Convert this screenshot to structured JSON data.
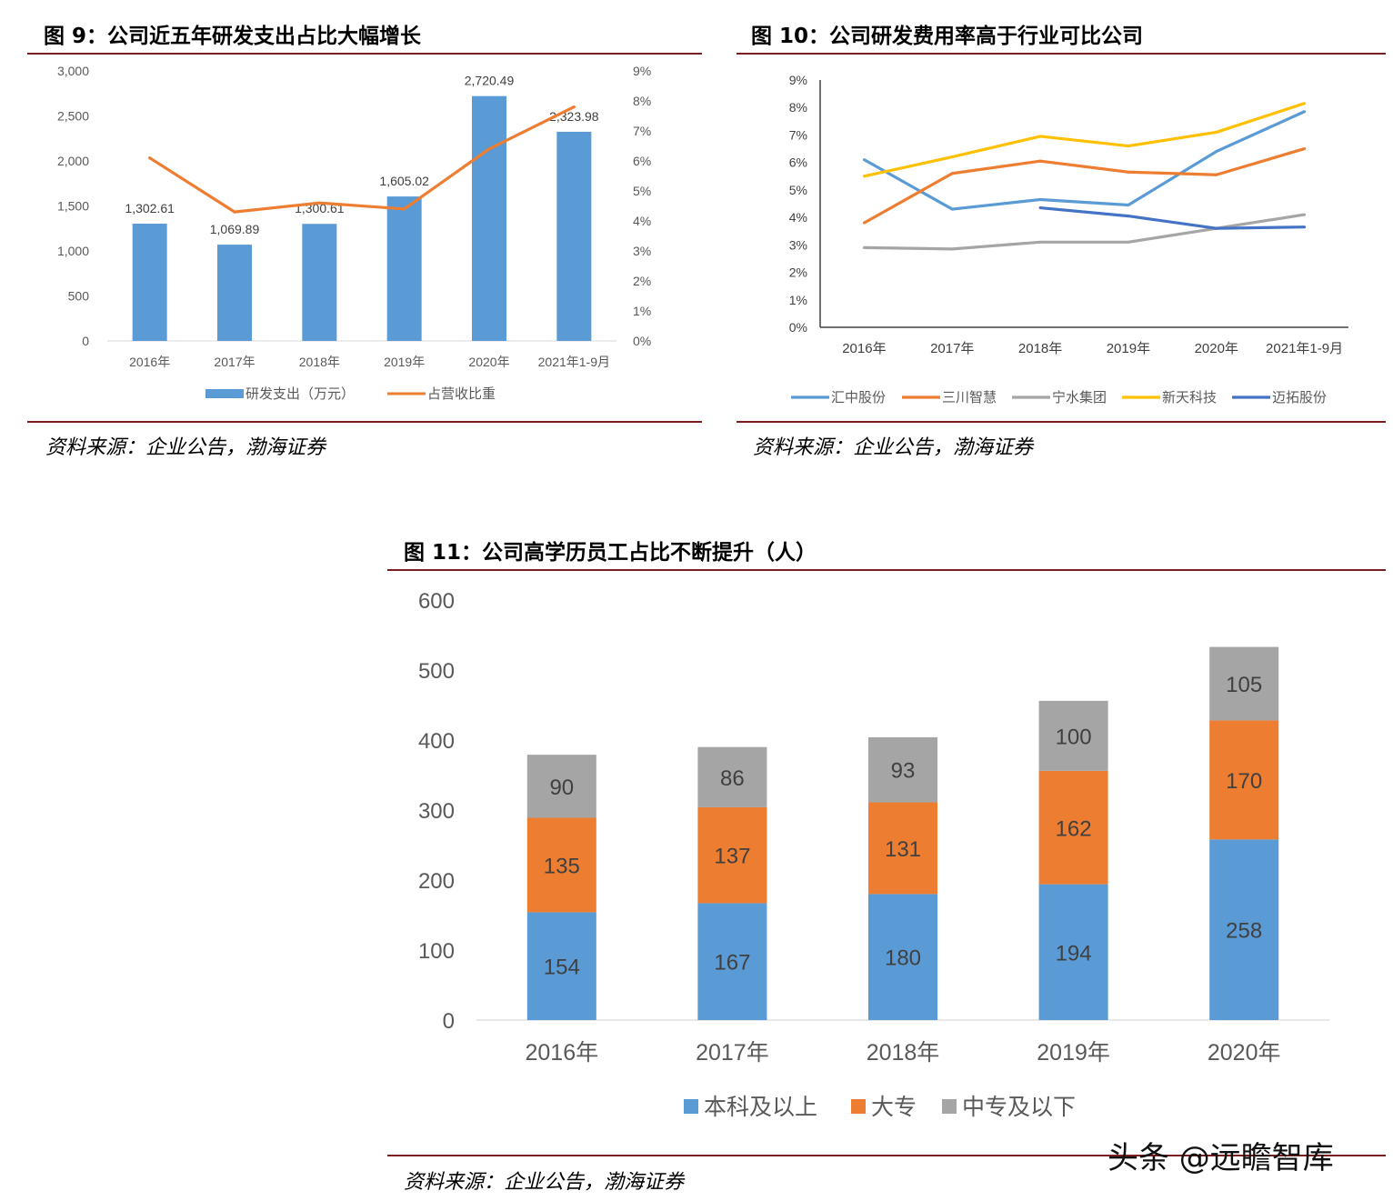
{
  "fig9": {
    "title": "图 9：公司近五年研发支出占比大幅增长",
    "source": "资料来源：企业公告，渤海证券"
  },
  "fig10": {
    "title": "图 10：公司研发费用率高于行业可比公司",
    "source": "资料来源：企业公告，渤海证券"
  },
  "fig11": {
    "title": "图 11：公司高学历员工占比不断提升（人）",
    "source": "资料来源：企业公告，渤海证券"
  },
  "watermark": "头条 @远瞻智库",
  "chart_data": [
    {
      "type": "bar",
      "categories": [
        "2016年",
        "2017年",
        "2018年",
        "2019年",
        "2020年",
        "2021年1-9月"
      ],
      "series": [
        {
          "name": "研发支出（万元）",
          "type": "bar",
          "axis": "left",
          "color": "#5b9bd5",
          "values": [
            1302.61,
            1069.89,
            1300.61,
            1605.02,
            2720.49,
            2323.98
          ],
          "labels": [
            "1,302.61",
            "1,069.89",
            "1,300.61",
            "1,605.02",
            "2,720.49",
            "2,323.98"
          ]
        },
        {
          "name": "占营收比重",
          "type": "line",
          "axis": "right",
          "color": "#ed7d31",
          "values": [
            6.1,
            4.3,
            4.6,
            4.4,
            6.4,
            7.8
          ]
        }
      ],
      "yticks_left": [
        "0",
        "500",
        "1,000",
        "1,500",
        "2,000",
        "2,500",
        "3,000"
      ],
      "yticks_right": [
        "0%",
        "1%",
        "2%",
        "3%",
        "4%",
        "5%",
        "6%",
        "7%",
        "8%",
        "9%"
      ],
      "ylim_left": [
        0,
        3000
      ],
      "ylim_right": [
        0,
        9
      ],
      "legend": "bottom"
    },
    {
      "type": "line",
      "categories": [
        "2016年",
        "2017年",
        "2018年",
        "2019年",
        "2020年",
        "2021年1-9月"
      ],
      "series": [
        {
          "name": "汇中股份",
          "color": "#5b9bd5",
          "values": [
            6.1,
            4.3,
            4.65,
            4.45,
            6.4,
            7.85
          ]
        },
        {
          "name": "三川智慧",
          "color": "#ed7d31",
          "values": [
            3.8,
            5.6,
            6.05,
            5.65,
            5.55,
            6.5
          ]
        },
        {
          "name": "宁水集团",
          "color": "#a5a5a5",
          "values": [
            2.9,
            2.85,
            3.1,
            3.1,
            3.6,
            4.1
          ]
        },
        {
          "name": "新天科技",
          "color": "#ffc000",
          "values": [
            5.5,
            6.2,
            6.95,
            6.6,
            7.1,
            8.15
          ]
        },
        {
          "name": "迈拓股份",
          "color": "#4472c4",
          "values": [
            null,
            null,
            4.35,
            4.05,
            3.6,
            3.65
          ]
        }
      ],
      "yticks": [
        "0%",
        "1%",
        "2%",
        "3%",
        "4%",
        "5%",
        "6%",
        "7%",
        "8%",
        "9%"
      ],
      "ylim": [
        0,
        9
      ],
      "legend": "bottom"
    },
    {
      "type": "bar",
      "stacked": true,
      "categories": [
        "2016年",
        "2017年",
        "2018年",
        "2019年",
        "2020年"
      ],
      "series": [
        {
          "name": "本科及以上",
          "color": "#5b9bd5",
          "values": [
            154,
            167,
            180,
            194,
            258
          ]
        },
        {
          "name": "大专",
          "color": "#ed7d31",
          "values": [
            135,
            137,
            131,
            162,
            170
          ]
        },
        {
          "name": "中专及以下",
          "color": "#a5a5a5",
          "values": [
            90,
            86,
            93,
            100,
            105
          ]
        }
      ],
      "yticks": [
        "0",
        "100",
        "200",
        "300",
        "400",
        "500",
        "600"
      ],
      "ylim": [
        0,
        600
      ],
      "legend": "bottom"
    }
  ]
}
